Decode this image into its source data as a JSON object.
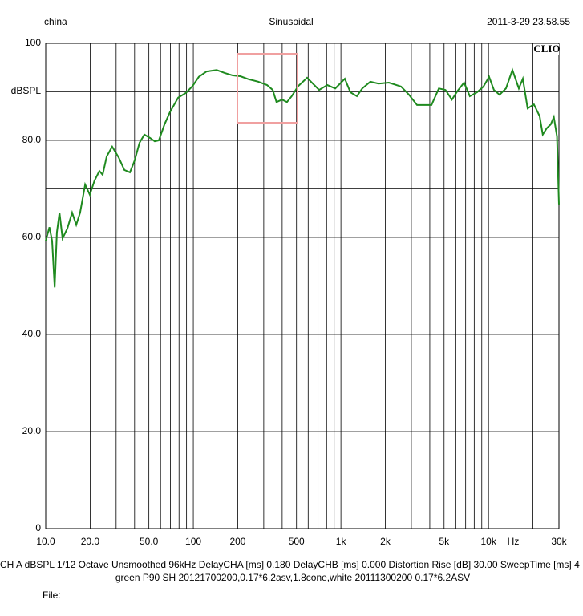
{
  "chart_data": {
    "type": "line",
    "title": "Sinusoidal",
    "header_left": "china",
    "header_right": "2011-3-29 23.58.55",
    "watermark": "CLIO",
    "y_label": "dBSPL",
    "x_label": "Hz",
    "footer_lines": [
      "CH A   dBSPL    1/12 Octave   Unsmoothed   96kHz   DelayCHA [ms] 0.180    DelayCHB [ms] 0.000    Distortion Rise [dB] 30.00    SweepTime [ms] 4",
      "green P90 SH 20121700200,0.17*6.2asv,1.8cone,white 20111300200 0.17*6.2ASV",
      "File:"
    ],
    "xscale": "log",
    "xlim": [
      10,
      30000
    ],
    "ylim": [
      0,
      100
    ],
    "xticks": [
      {
        "value": 10,
        "label": "10.0"
      },
      {
        "value": 20,
        "label": "20.0"
      },
      {
        "value": 50,
        "label": "50.0"
      },
      100,
      200,
      500,
      {
        "value": 1000,
        "label": "1k"
      },
      {
        "value": 2000,
        "label": "2k"
      },
      {
        "value": 5000,
        "label": "5k"
      },
      {
        "value": 10000,
        "label": "10k"
      },
      {
        "value": 30000,
        "label": "30k"
      }
    ],
    "xminor": [
      30,
      40,
      60,
      70,
      80,
      90,
      300,
      400,
      600,
      700,
      800,
      900,
      3000,
      4000,
      6000,
      7000,
      8000,
      9000,
      20000
    ],
    "yticks": [
      0,
      {
        "value": 20,
        "label": "20.0"
      },
      {
        "value": 40,
        "label": "40.0"
      },
      {
        "value": 60,
        "label": "60.0"
      },
      {
        "value": 80,
        "label": "80.0"
      },
      100
    ],
    "yminor": [
      10,
      30,
      50,
      70,
      90
    ],
    "grid": true,
    "x": [
      10,
      10.6,
      11.05,
      11.5,
      11.9,
      12.4,
      13,
      14,
      15.1,
      16.1,
      17.1,
      18.5,
      19.9,
      21.4,
      23.1,
      24.3,
      25.9,
      28.2,
      31.2,
      34.1,
      37.2,
      40.1,
      43.2,
      46.6,
      50.9,
      54.8,
      58.4,
      63.8,
      69.4,
      78.9,
      89.3,
      98.9,
      109,
      123,
      144,
      163,
      184,
      209,
      237,
      275,
      316,
      345,
      366,
      400,
      431,
      464,
      514,
      590,
      645,
      712,
      809,
      916,
      1063,
      1160,
      1283,
      1395,
      1582,
      1797,
      2113,
      2554,
      2893,
      3278,
      4110,
      4610,
      5105,
      5650,
      6170,
      6830,
      7470,
      8360,
      9240,
      10090,
      10880,
      11880,
      13130,
      14520,
      16050,
      17080,
      18400,
      20300,
      22200,
      23300,
      24800,
      26400,
      27700,
      29100,
      30000
    ],
    "series": [
      {
        "name": "green",
        "color": "#1f8a1f",
        "values": [
          59.3,
          62.1,
          59.3,
          49.7,
          61,
          65.1,
          59.8,
          61.8,
          65.1,
          62.6,
          65.1,
          70.9,
          68.8,
          71.7,
          73.7,
          72.9,
          76.7,
          78.7,
          76.5,
          73.9,
          73.4,
          75.9,
          79.5,
          81.2,
          80.5,
          79.8,
          80,
          83.3,
          85.8,
          88.8,
          89.8,
          91.2,
          93.1,
          94.2,
          94.5,
          93.9,
          93.4,
          93.2,
          92.6,
          92.1,
          91.4,
          90.4,
          87.9,
          88.4,
          87.9,
          89.1,
          91.2,
          92.9,
          91.7,
          90.4,
          91.4,
          90.7,
          92.7,
          89.9,
          89.1,
          90.7,
          92.1,
          91.7,
          91.9,
          91.1,
          89.4,
          87.3,
          87.3,
          90.7,
          90.4,
          88.4,
          90.2,
          91.9,
          89.1,
          89.9,
          91.1,
          93.1,
          90.4,
          89.4,
          90.7,
          94.5,
          90.7,
          92.7,
          86.6,
          87.4,
          85,
          81.2,
          82.5,
          83.3,
          84.8,
          80.8,
          66.8
        ]
      }
    ]
  }
}
